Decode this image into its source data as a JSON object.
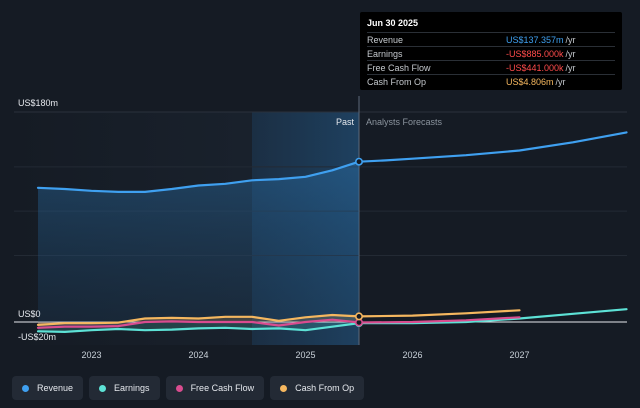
{
  "tooltip": {
    "date": "Jun 30 2025",
    "rows": [
      {
        "label": "Revenue",
        "value": "US$137.357m",
        "unit": "/yr",
        "color": "#3fa0f0"
      },
      {
        "label": "Earnings",
        "value": "-US$885.000k",
        "unit": "/yr",
        "color": "#ff4b4b"
      },
      {
        "label": "Free Cash Flow",
        "value": "-US$441.000k",
        "unit": "/yr",
        "color": "#ff4b4b"
      },
      {
        "label": "Cash From Op",
        "value": "US$4.806m",
        "unit": "/yr",
        "color": "#f5b75f"
      }
    ]
  },
  "chart_labels": {
    "y_top": "US$180m",
    "y_zero": "US$0",
    "y_neg": "-US$20m",
    "past": "Past",
    "forecast": "Analysts Forecasts"
  },
  "legend": [
    {
      "label": "Revenue",
      "color": "#3fa0f0"
    },
    {
      "label": "Earnings",
      "color": "#5de2d6"
    },
    {
      "label": "Free Cash Flow",
      "color": "#d94c8f"
    },
    {
      "label": "Cash From Op",
      "color": "#f5b75f"
    }
  ],
  "chart_data": {
    "type": "line",
    "ylim": [
      -20,
      180
    ],
    "x_ticks": [
      "2023",
      "2024",
      "2025",
      "2026",
      "2027"
    ],
    "divider_x": 2025.5,
    "highlight_start": 2024.5,
    "series": [
      {
        "name": "Revenue",
        "color": "#3fa0f0",
        "fill": true,
        "points": [
          [
            2022.5,
            115
          ],
          [
            2022.75,
            114
          ],
          [
            2023,
            112.5
          ],
          [
            2023.25,
            111.5
          ],
          [
            2023.5,
            111.5
          ],
          [
            2023.75,
            114
          ],
          [
            2024,
            117
          ],
          [
            2024.25,
            118.5
          ],
          [
            2024.5,
            121.5
          ],
          [
            2024.75,
            122.5
          ],
          [
            2025,
            124.5
          ],
          [
            2025.25,
            130
          ],
          [
            2025.5,
            137.4
          ]
        ]
      },
      {
        "name": "Revenue",
        "color": "#3fa0f0",
        "fill": false,
        "forecast": true,
        "points": [
          [
            2025.5,
            137.4
          ],
          [
            2025.75,
            138.5
          ],
          [
            2026,
            140
          ],
          [
            2026.5,
            143
          ],
          [
            2027,
            147
          ],
          [
            2027.5,
            154
          ],
          [
            2028,
            162.5
          ]
        ]
      },
      {
        "name": "Earnings",
        "color": "#5de2d6",
        "fill": true,
        "points": [
          [
            2022.5,
            -8
          ],
          [
            2022.75,
            -8.5
          ],
          [
            2023,
            -7
          ],
          [
            2023.25,
            -6
          ],
          [
            2023.5,
            -7
          ],
          [
            2023.75,
            -6.5
          ],
          [
            2024,
            -5.5
          ],
          [
            2024.25,
            -5
          ],
          [
            2024.5,
            -6
          ],
          [
            2024.75,
            -5.5
          ],
          [
            2025,
            -7
          ],
          [
            2025.25,
            -4
          ],
          [
            2025.5,
            -0.9
          ]
        ]
      },
      {
        "name": "Earnings",
        "color": "#5de2d6",
        "fill": false,
        "forecast": true,
        "points": [
          [
            2025.5,
            -0.9
          ],
          [
            2026,
            -1
          ],
          [
            2026.5,
            0
          ],
          [
            2027,
            3
          ],
          [
            2027.5,
            7
          ],
          [
            2028,
            11
          ]
        ]
      },
      {
        "name": "Free Cash Flow",
        "color": "#d94c8f",
        "fill": true,
        "points": [
          [
            2022.5,
            -5
          ],
          [
            2022.75,
            -4
          ],
          [
            2023,
            -4
          ],
          [
            2023.25,
            -3.5
          ],
          [
            2023.5,
            0
          ],
          [
            2023.75,
            0.5
          ],
          [
            2024,
            0
          ],
          [
            2024.25,
            0
          ],
          [
            2024.5,
            0
          ],
          [
            2024.75,
            -3
          ],
          [
            2025,
            0
          ],
          [
            2025.25,
            2
          ],
          [
            2025.5,
            -0.4
          ]
        ]
      },
      {
        "name": "Free Cash Flow",
        "color": "#d94c8f",
        "fill": false,
        "forecast": true,
        "points": [
          [
            2025.5,
            -0.4
          ],
          [
            2026,
            0
          ],
          [
            2026.5,
            1.5
          ],
          [
            2027,
            4
          ]
        ]
      },
      {
        "name": "Cash From Op",
        "color": "#f5b75f",
        "fill": true,
        "points": [
          [
            2022.5,
            -2.5
          ],
          [
            2022.75,
            -1
          ],
          [
            2023,
            -1
          ],
          [
            2023.25,
            -0.5
          ],
          [
            2023.5,
            3
          ],
          [
            2023.75,
            3.5
          ],
          [
            2024,
            3
          ],
          [
            2024.25,
            4.5
          ],
          [
            2024.5,
            4.5
          ],
          [
            2024.75,
            1
          ],
          [
            2025,
            4
          ],
          [
            2025.25,
            6
          ],
          [
            2025.5,
            4.8
          ]
        ]
      },
      {
        "name": "Cash From Op",
        "color": "#f5b75f",
        "fill": false,
        "forecast": true,
        "points": [
          [
            2025.5,
            4.8
          ],
          [
            2026,
            5.5
          ],
          [
            2026.5,
            7.5
          ],
          [
            2027,
            10
          ]
        ]
      }
    ]
  }
}
